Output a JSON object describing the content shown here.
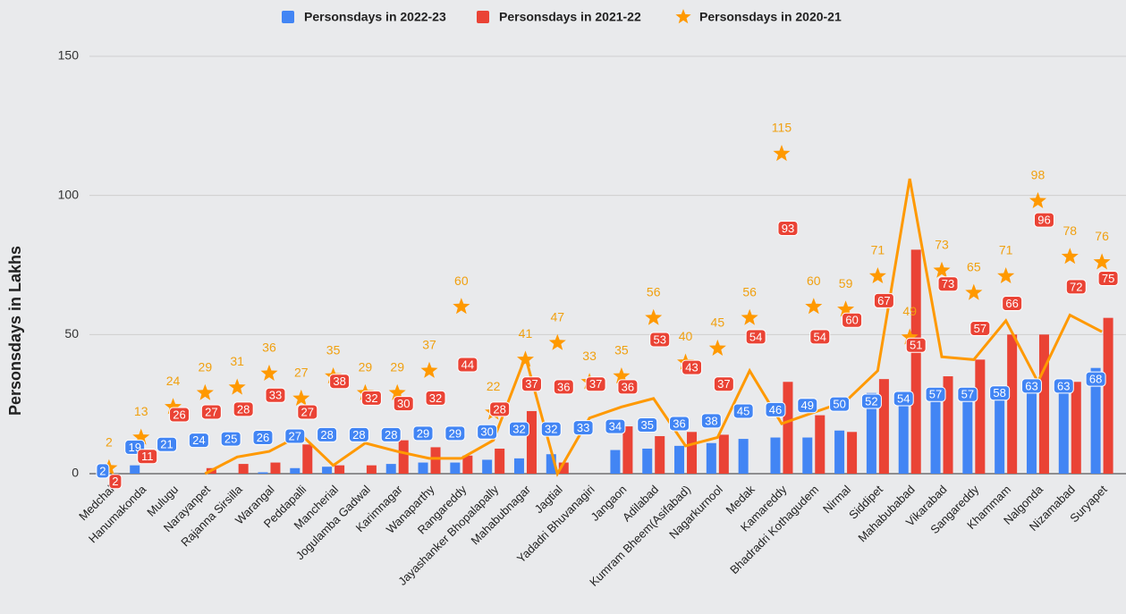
{
  "chart_data": {
    "type": "combo",
    "y_axis_label": "Personsdays in Lakhs",
    "categories": [
      "Medchal",
      "Hanumakonda",
      "Mulugu",
      "Narayanpet",
      "Rajanna Sirsilla",
      "Warangal",
      "Peddapalli",
      "Mancherial",
      "Jogulamba Gadwal",
      "Karimnagar",
      "Wanaparthy",
      "Rangareddy",
      "Jayashanker Bhopalapally",
      "Mahabubnagar",
      "Jagtial",
      "Yadadri Bhuvanagiri",
      "Jangaon",
      "Adilabad",
      "Kumram Bheem(Asifabad)",
      "Nagarkurnool",
      "Medak",
      "Kamareddy",
      "Bhadradri Kothagudem",
      "Nirmal",
      "Siddipet",
      "Mahabubabad",
      "Vikarabad",
      "Sangareddy",
      "Khammam",
      "Nalgonda",
      "Nizamabad",
      "Suryapet"
    ],
    "series": [
      {
        "name": "Personsdays in 2022-23",
        "color": "#4285f4",
        "type": "bar",
        "values": [
          0.5,
          3,
          0,
          0,
          0,
          0.5,
          2,
          2.5,
          0,
          3.5,
          4,
          4,
          5,
          5.5,
          7,
          0,
          8.5,
          9,
          10,
          11,
          12.5,
          13,
          13,
          15.5,
          29,
          28,
          30,
          30,
          31,
          32,
          34,
          38
        ]
      },
      {
        "name": "Personsdays in 2021-22",
        "color": "#ea4335",
        "type": "bar",
        "values": [
          0,
          0,
          0,
          2,
          3.5,
          4,
          10.5,
          3,
          3,
          12,
          9.5,
          6.5,
          9,
          22.5,
          4,
          0,
          17,
          13.5,
          15,
          14,
          0,
          33,
          21,
          15,
          34,
          80.5,
          35,
          41,
          50,
          50,
          33,
          56
        ]
      },
      {
        "name": "Personsdays in 2020-21",
        "color": "#ff9900",
        "type": "star",
        "values": [
          2,
          13,
          24,
          29,
          31,
          36,
          27,
          35,
          29,
          29,
          37,
          60,
          22,
          41,
          47,
          33,
          35,
          56,
          40,
          45,
          56,
          115,
          60,
          59,
          71,
          49,
          73,
          65,
          71,
          98,
          78,
          76
        ]
      },
      {
        "color": "#ff9900",
        "type": "line",
        "values": [
          null,
          null,
          null,
          0,
          6,
          8,
          14,
          3,
          11,
          8,
          5.5,
          5.5,
          12,
          42,
          0,
          20,
          24,
          27,
          10,
          13,
          37,
          18,
          22,
          26,
          37,
          106,
          42,
          41,
          55,
          33,
          57,
          51
        ]
      }
    ],
    "labels": [
      {
        "color": "#4285f4",
        "values": [
          2,
          19,
          21,
          24,
          25,
          26,
          27,
          28,
          28,
          28,
          29,
          29,
          30,
          32,
          32,
          33,
          34,
          35,
          36,
          38,
          45,
          46,
          49,
          50,
          52,
          54,
          57,
          57,
          58,
          63,
          63,
          68
        ]
      },
      {
        "color": "#ea4335",
        "values": [
          2,
          11,
          26,
          27,
          28,
          33,
          27,
          38,
          32,
          30,
          32,
          44,
          28,
          37,
          36,
          37,
          36,
          53,
          43,
          37,
          54,
          93,
          54,
          60,
          67,
          51,
          73,
          57,
          66,
          96,
          72,
          75
        ]
      }
    ],
    "ylim": [
      0,
      150
    ],
    "yticks": [
      0,
      50,
      100,
      150
    ],
    "grid": true,
    "legend": "top"
  }
}
